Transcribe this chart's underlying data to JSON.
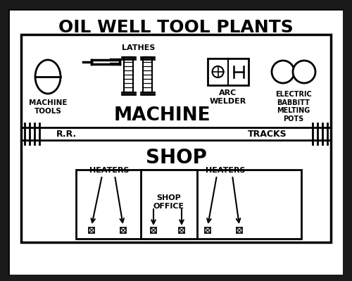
{
  "title": "OIL WELL TOOL PLANTS",
  "bg_color": "#ffffff",
  "text_color": "#000000",
  "figsize": [
    5.0,
    3.99
  ],
  "dpi": 100,
  "machine_label": "MACHINE",
  "shop_label": "SHOP",
  "rr_label": "R.R.",
  "tracks_label": "TRACKS",
  "machine_tools_label": "MACHINE\nTOOLS",
  "lathes_label": "LATHES",
  "arc_welder_label": "ARC\nWELDER",
  "electric_label": "ELECTRIC\nBABBITT\nMELTING\nPOTS",
  "heaters_label1": "HEATERS",
  "heaters_label2": "HEATERS",
  "shop_office_label": "SHOP\nOFFICE",
  "dark_color": "#1a1a1a"
}
